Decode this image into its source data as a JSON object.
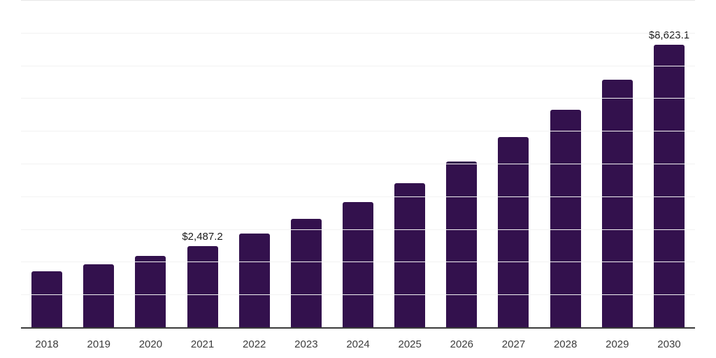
{
  "chart_data": {
    "type": "bar",
    "title": "",
    "xlabel": "",
    "ylabel": "",
    "categories": [
      "2018",
      "2019",
      "2020",
      "2021",
      "2022",
      "2023",
      "2024",
      "2025",
      "2026",
      "2027",
      "2028",
      "2029",
      "2030"
    ],
    "values": [
      1700,
      1930,
      2180,
      2487.2,
      2855,
      3320,
      3830,
      4400,
      5060,
      5810,
      6650,
      7570,
      8623.1
    ],
    "value_labels": {
      "2021": "$2,487.2",
      "2030": "$8,623.1"
    },
    "ylim": [
      0,
      10000
    ],
    "grid_step": 1000,
    "gridlines": "horizontal",
    "legend": "none"
  },
  "colors": {
    "bar": "#33114d",
    "axis": "#3b3b3b",
    "gridline": "#f2f2f2",
    "top_gridline": "#e6e6e6",
    "tick_label": "#3c3c3c",
    "value_label": "#1a1a1a",
    "background": "#ffffff"
  }
}
